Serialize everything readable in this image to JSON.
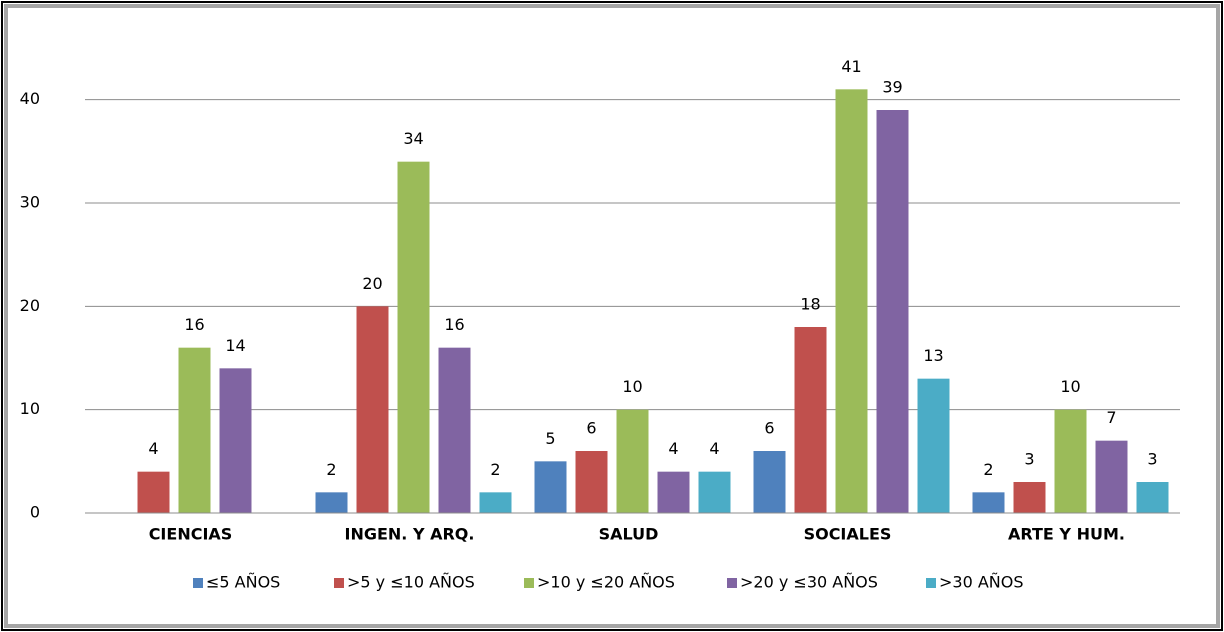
{
  "chart_data": {
    "type": "bar",
    "categories": [
      "CIENCIAS",
      "INGEN. Y ARQ.",
      "SALUD",
      "SOCIALES",
      "ARTE Y HUM."
    ],
    "series": [
      {
        "name": "≤5 AÑOS",
        "color": "#4f81bd",
        "values": [
          null,
          2,
          5,
          6,
          2
        ]
      },
      {
        "name": ">5 y ≤10 AÑOS",
        "color": "#c0504d",
        "values": [
          4,
          20,
          6,
          18,
          3
        ]
      },
      {
        "name": ">10 y ≤20 AÑOS",
        "color": "#9bbb59",
        "values": [
          16,
          34,
          10,
          41,
          10
        ]
      },
      {
        "name": ">20 y ≤30 AÑOS",
        "color": "#8064a2",
        "values": [
          14,
          16,
          4,
          39,
          7
        ]
      },
      {
        "name": ">30 AÑOS",
        "color": "#4bacc6",
        "values": [
          null,
          2,
          4,
          13,
          3
        ]
      }
    ],
    "ylim": [
      0,
      45
    ],
    "yticks": [
      0,
      10,
      20,
      30,
      40
    ],
    "grid": true,
    "legend": "bottom"
  }
}
